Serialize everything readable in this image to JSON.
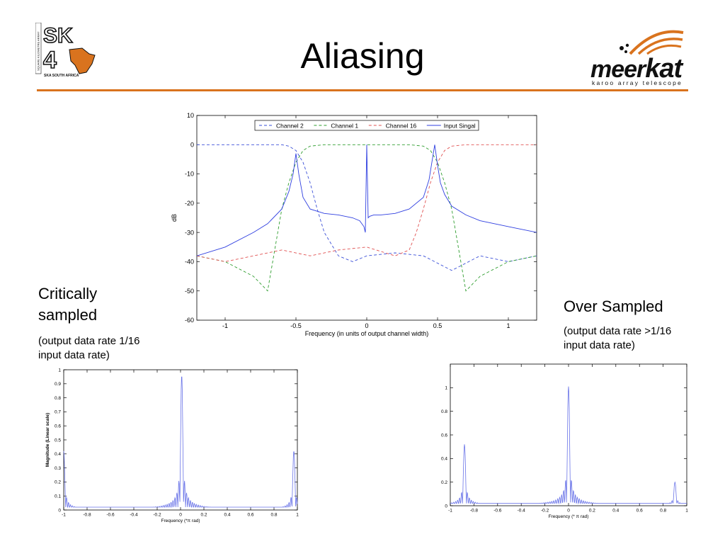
{
  "slide": {
    "title": "Aliasing",
    "left_heading": [
      "Critically",
      "sampled"
    ],
    "left_note": [
      "(output data rate 1/16",
      "input data rate)"
    ],
    "right_heading": "Over Sampled",
    "right_note": [
      "(output data rate >1/16",
      "input data rate)"
    ],
    "logo_left": {
      "text_main": "SK",
      "text_num": "4",
      "caption": "SKA SOUTH AFRICA",
      "side": "SQUARE KILOMETRE ARRAY",
      "accent": "#d9731e"
    },
    "logo_right": {
      "brand_a": "meer",
      "brand_b": "kat",
      "tagline": "karoo array telescope",
      "accent": "#d9731e"
    },
    "rule_color": "#d9731e"
  },
  "chart_data": [
    {
      "type": "line",
      "title": "",
      "xlabel": "Frequency (in units of output channel width)",
      "ylabel": "dB",
      "xlim": [
        -1.2,
        1.2
      ],
      "ylim": [
        -60,
        10
      ],
      "xticks": [
        -1,
        -0.5,
        0,
        0.5,
        1
      ],
      "xtick_labels": [
        "-1",
        "-0.5",
        "0",
        "0.5",
        "1"
      ],
      "yticks": [
        10,
        0,
        -10,
        -20,
        -30,
        -40,
        -50,
        -60
      ],
      "ytick_labels": [
        "10",
        "0",
        "-10",
        "-20",
        "-30",
        "-40",
        "-50",
        "-60"
      ],
      "grid": false,
      "legend_position": "top",
      "series": [
        {
          "name": "Channel 2",
          "color": "#3a4fd8",
          "dash": "dashed",
          "x": [
            -1.2,
            -0.9,
            -0.7,
            -0.6,
            -0.55,
            -0.5,
            -0.45,
            -0.4,
            -0.35,
            -0.3,
            -0.25,
            -0.2,
            -0.1,
            0,
            0.2,
            0.4,
            0.6,
            0.8,
            1.0,
            1.2
          ],
          "y": [
            0,
            0,
            0,
            0,
            -0.5,
            -2,
            -6,
            -13,
            -22,
            -30,
            -34,
            -38,
            -40,
            -38,
            -37,
            -38,
            -43,
            -38,
            -40,
            -38
          ]
        },
        {
          "name": "Channel 1",
          "color": "#2e9d2e",
          "dash": "dashed",
          "x": [
            -1.2,
            -1.0,
            -0.8,
            -0.7,
            -0.6,
            -0.55,
            -0.5,
            -0.45,
            -0.4,
            -0.3,
            -0.1,
            0,
            0.1,
            0.3,
            0.4,
            0.45,
            0.5,
            0.55,
            0.6,
            0.7,
            0.8,
            1.0,
            1.2
          ],
          "y": [
            -38,
            -40,
            -45,
            -50,
            -22,
            -13,
            -6,
            -2,
            -0.5,
            0,
            0,
            0,
            0,
            0,
            -0.5,
            -2,
            -6,
            -13,
            -22,
            -50,
            -45,
            -40,
            -38
          ]
        },
        {
          "name": "Channel 16",
          "color": "#e05050",
          "dash": "dashed",
          "x": [
            -1.2,
            -1.0,
            -0.8,
            -0.6,
            -0.4,
            -0.2,
            0,
            0.2,
            0.3,
            0.35,
            0.4,
            0.45,
            0.5,
            0.55,
            0.6,
            0.7,
            0.9,
            1.2
          ],
          "y": [
            -38,
            -40,
            -38,
            -36,
            -38,
            -36,
            -35,
            -38,
            -36,
            -30,
            -22,
            -13,
            -6,
            -2,
            -0.5,
            0,
            0,
            0
          ]
        },
        {
          "name": "Input Singal",
          "color": "#2f3fe0",
          "dash": "solid",
          "x": [
            -1.2,
            -1.0,
            -0.8,
            -0.7,
            -0.6,
            -0.55,
            -0.52,
            -0.5,
            -0.48,
            -0.45,
            -0.4,
            -0.3,
            -0.2,
            -0.1,
            -0.05,
            -0.02,
            -0.01,
            0.0,
            0.01,
            0.02,
            0.05,
            0.1,
            0.2,
            0.3,
            0.4,
            0.44,
            0.46,
            0.48,
            0.5,
            0.52,
            0.55,
            0.6,
            0.7,
            0.8,
            1.0,
            1.2
          ],
          "y": [
            -38,
            -35,
            -30,
            -27,
            -22,
            -16,
            -10,
            -3,
            -10,
            -18,
            -22,
            -23.5,
            -24,
            -25,
            -26,
            -28,
            -30,
            0,
            -25,
            -24.5,
            -24,
            -24,
            -23.5,
            -22,
            -18,
            -12,
            -6,
            0,
            -7,
            -13,
            -17,
            -21,
            -24,
            -26,
            -28,
            -30
          ]
        }
      ]
    },
    {
      "type": "line",
      "title": "",
      "xlabel": "Frequency (*π rad)",
      "ylabel": "Magnitude (Linear scale)",
      "xlim": [
        -1,
        1
      ],
      "ylim": [
        0,
        1
      ],
      "xticks": [
        -1,
        -0.8,
        -0.6,
        -0.4,
        -0.2,
        0,
        0.2,
        0.4,
        0.6,
        0.8,
        1
      ],
      "xtick_labels": [
        "-1",
        "-0.8",
        "-0.6",
        "-0.4",
        "-0.2",
        "0",
        "0.2",
        "0.4",
        "0.6",
        "0.8",
        "1"
      ],
      "yticks": [
        0,
        0.1,
        0.2,
        0.3,
        0.4,
        0.5,
        0.6,
        0.7,
        0.8,
        0.9,
        1
      ],
      "ytick_labels": [
        "0",
        "0.1",
        "0.2",
        "0.3",
        "0.4",
        "0.5",
        "0.6",
        "0.7",
        "0.8",
        "0.9",
        "1"
      ],
      "grid": false,
      "series": [
        {
          "name": "",
          "color": "#6a74e8",
          "peaks": [
            {
              "x": 0.01,
              "y": 0.96
            },
            {
              "x": -1.0,
              "y": 0.42
            },
            {
              "x": 0.97,
              "y": 0.42
            }
          ],
          "floor": 0.02
        }
      ]
    },
    {
      "type": "line",
      "title": "",
      "xlabel": "Frequency (* π rad)",
      "ylabel": "",
      "xlim": [
        -1,
        1
      ],
      "ylim": [
        0,
        1.2
      ],
      "xticks": [
        -1,
        -0.8,
        -0.6,
        -0.4,
        -0.2,
        0,
        0.2,
        0.4,
        0.6,
        0.8,
        1
      ],
      "xtick_labels": [
        "-1",
        "-0.8",
        "-0.6",
        "-0.4",
        "-0.2",
        "0",
        "0.2",
        "0.4",
        "0.6",
        "0.8",
        "1"
      ],
      "yticks": [
        0,
        0.2,
        0.4,
        0.6,
        0.8,
        1
      ],
      "ytick_labels": [
        "0",
        "0.2",
        "0.4",
        "0.6",
        "0.8",
        "1"
      ],
      "grid": false,
      "series": [
        {
          "name": "",
          "color": "#6a74e8",
          "peaks": [
            {
              "x": 0.0,
              "y": 1.01
            },
            {
              "x": -0.88,
              "y": 0.52
            },
            {
              "x": 0.9,
              "y": 0.2
            }
          ],
          "floor": 0.02
        }
      ]
    }
  ]
}
